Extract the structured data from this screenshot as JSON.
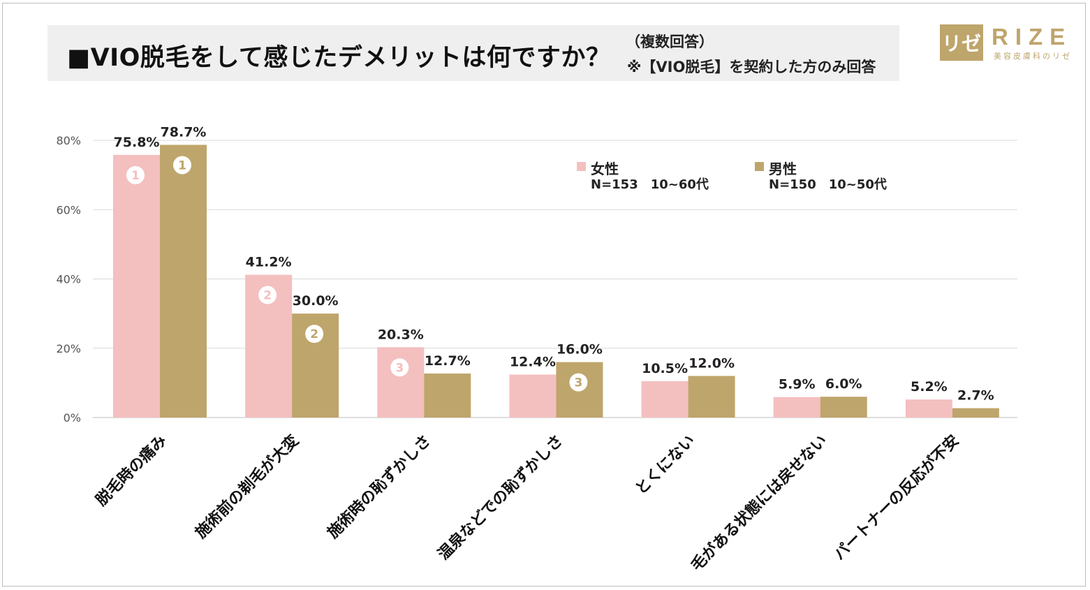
{
  "header": {
    "title": "■VIO脱毛をして感じたデメリットは何ですか？",
    "note_multi": "（複数回答）",
    "note_scope": "※【VIO脱毛】を契約した方のみ回答"
  },
  "brand": {
    "mark": "リゼ",
    "name": "RIZE",
    "tagline": "美容皮膚科のリゼ",
    "color": "#bea56b"
  },
  "chart_data": {
    "type": "bar",
    "title": "■VIO脱毛をして感じたデメリットは何ですか？",
    "xlabel": "",
    "ylabel": "",
    "ylim": [
      0,
      80
    ],
    "yticks": [
      "0%",
      "20%",
      "40%",
      "60%",
      "80%"
    ],
    "ytick_values": [
      0,
      20,
      40,
      60,
      80
    ],
    "grid": true,
    "legend_position": "top-right",
    "categories": [
      "脱毛時の痛み",
      "施術前の剃毛が大変",
      "施術時の恥ずかしさ",
      "温泉などでの恥ずかしさ",
      "とくにない",
      "毛がある状態には戻せない",
      "パートナーの反応が不安"
    ],
    "series": [
      {
        "name": "女性",
        "description": "N=153　10~60代",
        "color": "#f4bfbf",
        "values": [
          75.8,
          41.2,
          20.3,
          12.4,
          10.5,
          5.9,
          5.2
        ],
        "labels": [
          "75.8%",
          "41.2%",
          "20.3%",
          "12.4%",
          "10.5%",
          "5.9%",
          "5.2%"
        ],
        "ranks": [
          "1",
          "2",
          "3",
          "",
          "",
          "",
          ""
        ]
      },
      {
        "name": "男性",
        "description": "N=150　10~50代",
        "color": "#bea56b",
        "values": [
          78.7,
          30.0,
          12.7,
          16.0,
          12.0,
          6.0,
          2.7
        ],
        "labels": [
          "78.7%",
          "30.0%",
          "12.7%",
          "16.0%",
          "12.0%",
          "6.0%",
          "2.7%"
        ],
        "ranks": [
          "1",
          "2",
          "",
          "3",
          "",
          "",
          ""
        ]
      }
    ]
  }
}
